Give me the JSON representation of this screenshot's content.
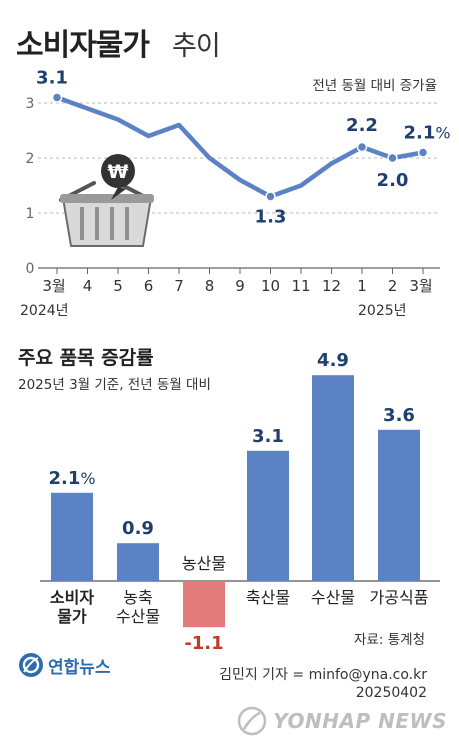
{
  "header": {
    "title_main": "소비자물가",
    "title_sub": "추이"
  },
  "colors": {
    "line": "#5a82c4",
    "bar_positive": "#5a82c4",
    "bar_negative": "#e37b7b",
    "label_dark": "#1f3f6e",
    "negative_label": "#c0392b"
  },
  "chart_data": [
    {
      "type": "line",
      "unit_label": "전년 동월 대비 증가율",
      "x": [
        "3월",
        "4",
        "5",
        "6",
        "7",
        "8",
        "9",
        "10",
        "11",
        "12",
        "1",
        "2",
        "3월"
      ],
      "year_labels": [
        "2024년",
        "2025년"
      ],
      "y": [
        3.1,
        2.9,
        2.7,
        2.4,
        2.6,
        2.0,
        1.6,
        1.3,
        1.5,
        1.9,
        2.2,
        2.0,
        2.1
      ],
      "value_labels": [
        {
          "index": 0,
          "text": "3.1"
        },
        {
          "index": 7,
          "text": "1.3"
        },
        {
          "index": 10,
          "text": "2.2"
        },
        {
          "index": 11,
          "text": "2.0"
        },
        {
          "index": 12,
          "text": "2.1",
          "unit": "%"
        }
      ],
      "yticks": [
        "0",
        "1",
        "2",
        "3"
      ],
      "ylim": [
        0,
        3.3
      ],
      "grid": true,
      "illustration": "shopping-basket-with-won-coin-icon"
    },
    {
      "type": "bar",
      "title": "주요 품목 증감률",
      "subtitle": "2025년 3월 기준, 전년 동월 대비",
      "categories": [
        "소비자 물가",
        "농축 수산물",
        "농산물",
        "축산물",
        "수산물",
        "가공식품"
      ],
      "category_lines": [
        [
          "소비자",
          "물가"
        ],
        [
          "농축",
          "수산물"
        ],
        [
          "농산물"
        ],
        [
          "축산물"
        ],
        [
          "수산물"
        ],
        [
          "가공식품"
        ]
      ],
      "values": [
        2.1,
        0.9,
        -1.1,
        3.1,
        4.9,
        3.6
      ],
      "value_labels": [
        "2.1",
        "0.9",
        "-1.1",
        "3.1",
        "4.9",
        "3.6"
      ],
      "first_value_unit": "%",
      "grid": false
    }
  ],
  "footer": {
    "source": "자료: 통계청",
    "logo_text": "연합뉴스",
    "credit": "김민지 기자 = minfo@yna.co.kr",
    "code": "20250402",
    "watermark": "YONHAP NEWS"
  }
}
